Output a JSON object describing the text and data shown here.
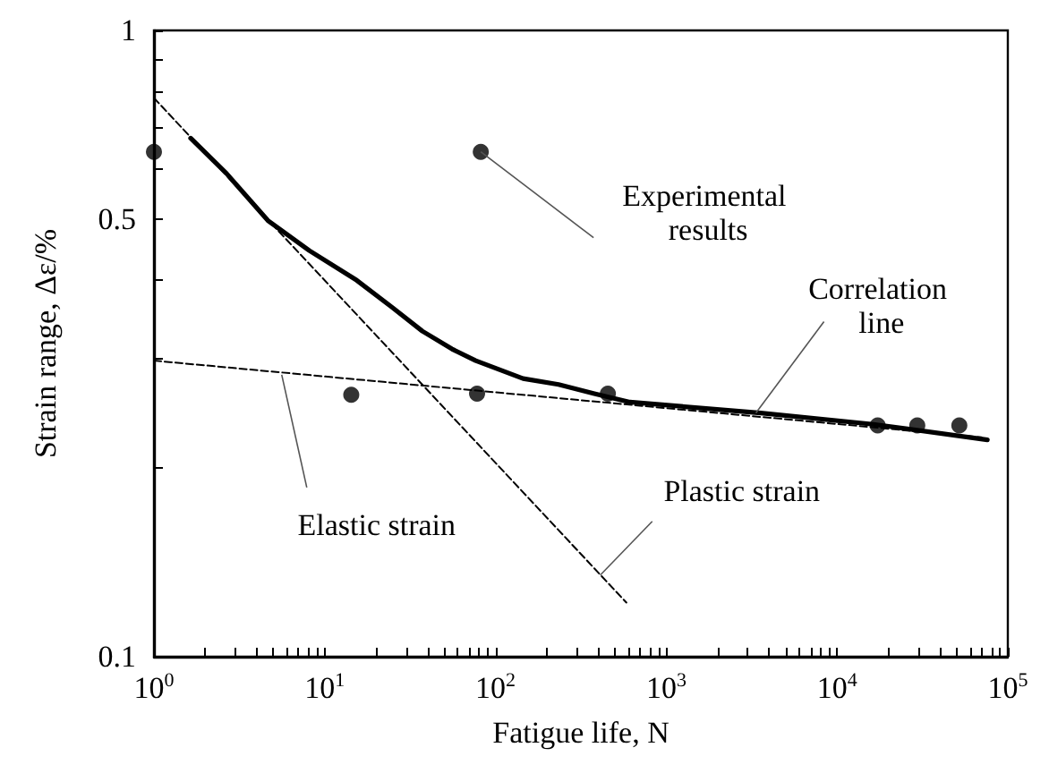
{
  "chart_data": {
    "type": "line",
    "xlabel": "Fatigue life, N",
    "ylabel": "Strain range, Δε/%",
    "log": "xy",
    "xlim": [
      1,
      100000
    ],
    "ylim": [
      0.1,
      1
    ],
    "xticks": [
      {
        "value": 1,
        "label": "10$^{0}$"
      },
      {
        "value": 2,
        "label": null
      },
      {
        "value": 3,
        "label": null
      },
      {
        "value": 4,
        "label": null
      },
      {
        "value": 5,
        "label": null
      },
      {
        "value": 6,
        "label": null
      },
      {
        "value": 7,
        "label": null
      },
      {
        "value": 8,
        "label": null
      },
      {
        "value": 9,
        "label": null
      },
      {
        "value": 10,
        "label": "10$^{1}$"
      },
      {
        "value": 20,
        "label": null
      },
      {
        "value": 30,
        "label": null
      },
      {
        "value": 40,
        "label": null
      },
      {
        "value": 50,
        "label": null
      },
      {
        "value": 60,
        "label": null
      },
      {
        "value": 70,
        "label": null
      },
      {
        "value": 80,
        "label": null
      },
      {
        "value": 90,
        "label": null
      },
      {
        "value": 100,
        "label": "10$^{2}$"
      },
      {
        "value": 200,
        "label": null
      },
      {
        "value": 300,
        "label": null
      },
      {
        "value": 400,
        "label": null
      },
      {
        "value": 500,
        "label": null
      },
      {
        "value": 600,
        "label": null
      },
      {
        "value": 700,
        "label": null
      },
      {
        "value": 800,
        "label": null
      },
      {
        "value": 900,
        "label": null
      },
      {
        "value": 1000,
        "label": "10$^{3}$"
      },
      {
        "value": 2000,
        "label": null
      },
      {
        "value": 3000,
        "label": null
      },
      {
        "value": 4000,
        "label": null
      },
      {
        "value": 5000,
        "label": null
      },
      {
        "value": 6000,
        "label": null
      },
      {
        "value": 7000,
        "label": null
      },
      {
        "value": 8000,
        "label": null
      },
      {
        "value": 9000,
        "label": null
      },
      {
        "value": 10000,
        "label": "10$^{4}$"
      },
      {
        "value": 20000,
        "label": null
      },
      {
        "value": 30000,
        "label": null
      },
      {
        "value": 40000,
        "label": null
      },
      {
        "value": 50000,
        "label": null
      },
      {
        "value": 60000,
        "label": null
      },
      {
        "value": 70000,
        "label": null
      },
      {
        "value": 80000,
        "label": null
      },
      {
        "value": 90000,
        "label": null
      },
      {
        "value": 100000,
        "label": "10$^{5}$"
      }
    ],
    "yticks": [
      0.1,
      {
        "value": 0.2,
        "label": null
      },
      {
        "value": 0.3,
        "label": null
      },
      {
        "value": 0.4,
        "label": null
      },
      0.5,
      {
        "value": 0.6,
        "label": null
      },
      {
        "value": 0.7,
        "label": null
      },
      {
        "value": 0.8,
        "label": null
      },
      {
        "value": 0.9,
        "label": null
      },
      1
    ],
    "series": [
      {
        "type": "scatter",
        "marker": "circle",
        "color": "#000000",
        "x": [
          1,
          82,
          14.3,
          78,
          455,
          17300,
          29500,
          52000
        ],
        "values": [
          0.64,
          0.64,
          0.262,
          0.263,
          0.263,
          0.234,
          0.234,
          0.234
        ]
      },
      {
        "marker": "none",
        "line_style": "solid",
        "color": "#000000",
        "x": [
          1.64,
          2.66,
          4.65,
          8.13,
          15.4,
          24.9,
          37.3,
          55.6,
          76.6,
          145,
          234,
          379,
          612,
          3570,
          16300,
          75900
        ],
        "values": [
          0.673,
          0.591,
          0.497,
          0.445,
          0.399,
          0.361,
          0.331,
          0.31,
          0.297,
          0.278,
          0.272,
          0.263,
          0.255,
          0.245,
          0.235,
          0.222
        ]
      },
      {
        "marker": "none",
        "line_style": "dashed",
        "color": "#000000",
        "x": [
          1,
          70000
        ],
        "values": [
          0.297,
          0.224
        ]
      },
      {
        "marker": "none",
        "line_style": "dashed",
        "color": "#000000",
        "x": [
          1,
          584
        ],
        "values": [
          0.78,
          0.122
        ]
      }
    ],
    "annotations": [
      {
        "text": "Experimental results",
        "x": 82,
        "y": 0.64
      },
      {
        "text": "Correlation line",
        "x": 3350,
        "y": 0.245
      },
      {
        "text": "Elastic strain",
        "x": 5.6,
        "y": 0.282
      },
      {
        "text": "Plastic strain",
        "x": 411,
        "y": 0.135
      }
    ]
  }
}
